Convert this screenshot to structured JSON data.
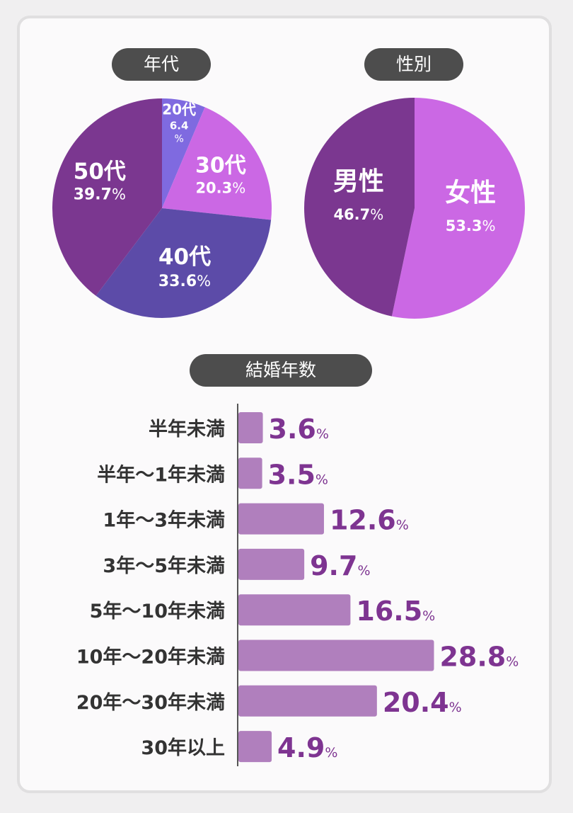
{
  "colors": {
    "dark_purple": "#7b3790",
    "purple": "#cb68e4",
    "violet": "#7f6ae0",
    "indigo": "#5c4ba8",
    "bar": "#b07fbd",
    "value_text": "#7e3491",
    "label_text": "#333333",
    "axis": "#555555"
  },
  "chart_data": [
    {
      "type": "pie",
      "title": "年代",
      "slices": [
        {
          "label": "20代",
          "value": 6.4,
          "text": "6.4",
          "unit": "%",
          "color": "#7f6ae0"
        },
        {
          "label": "30代",
          "value": 20.3,
          "text": "20.3",
          "unit": "%",
          "color": "#cb68e4"
        },
        {
          "label": "40代",
          "value": 33.6,
          "text": "33.6",
          "unit": "%",
          "color": "#5c4ba8"
        },
        {
          "label": "50代",
          "value": 39.7,
          "text": "39.7",
          "unit": "%",
          "color": "#7b3790"
        }
      ]
    },
    {
      "type": "pie",
      "title": "性別",
      "slices": [
        {
          "label": "女性",
          "value": 53.3,
          "text": "53.3",
          "unit": "%",
          "color": "#cb68e4"
        },
        {
          "label": "男性",
          "value": 46.7,
          "text": "46.7",
          "unit": "%",
          "color": "#7b3790"
        }
      ]
    },
    {
      "type": "bar",
      "orientation": "horizontal",
      "title": "結婚年数",
      "unit": "%",
      "categories": [
        "半年未満",
        "半年〜1年未満",
        "1年〜3年未満",
        "3年〜5年未満",
        "5年〜10年未満",
        "10年〜20年未満",
        "20年〜30年未満",
        "30年以上"
      ],
      "values": [
        3.6,
        3.5,
        12.6,
        9.7,
        16.5,
        28.8,
        20.4,
        4.9
      ],
      "value_labels": [
        "3.6",
        "3.5",
        "12.6",
        "9.7",
        "16.5",
        "28.8",
        "20.4",
        "4.9"
      ],
      "xlim": [
        0,
        30
      ]
    }
  ]
}
